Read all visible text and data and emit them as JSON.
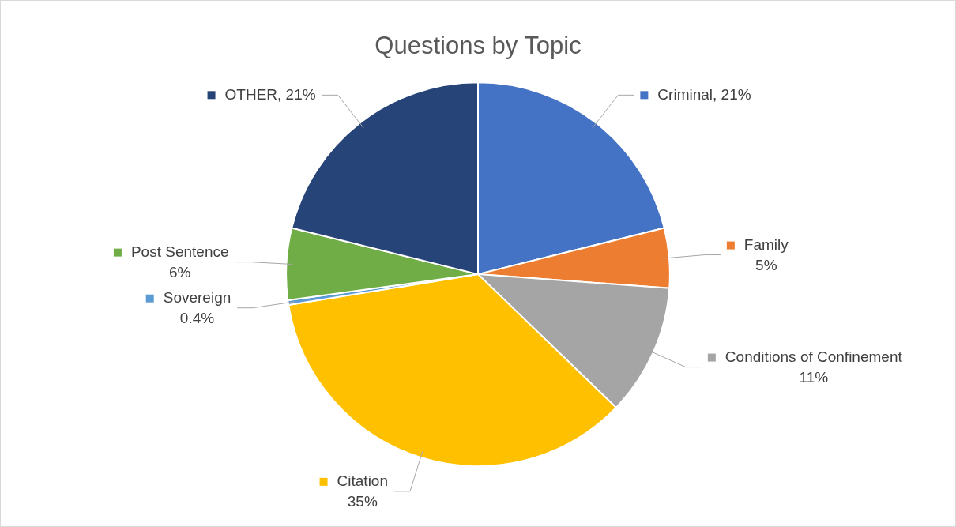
{
  "chart_data": {
    "type": "pie",
    "title": "Questions by Topic",
    "categories": [
      "Criminal",
      "Family",
      "Conditions of Confinement",
      "Citation",
      "Sovereign",
      "Post Sentence",
      "OTHER"
    ],
    "values": [
      21,
      5,
      11,
      35,
      0.4,
      6,
      21
    ],
    "colors": [
      "#4472c4",
      "#ed7d31",
      "#a5a5a5",
      "#ffc000",
      "#5b9bd5",
      "#70ad47",
      "#264478"
    ],
    "value_labels": [
      "21%",
      "5%",
      "11%",
      "35%",
      "0.4%",
      "6%",
      "21%"
    ],
    "legend": "right"
  }
}
